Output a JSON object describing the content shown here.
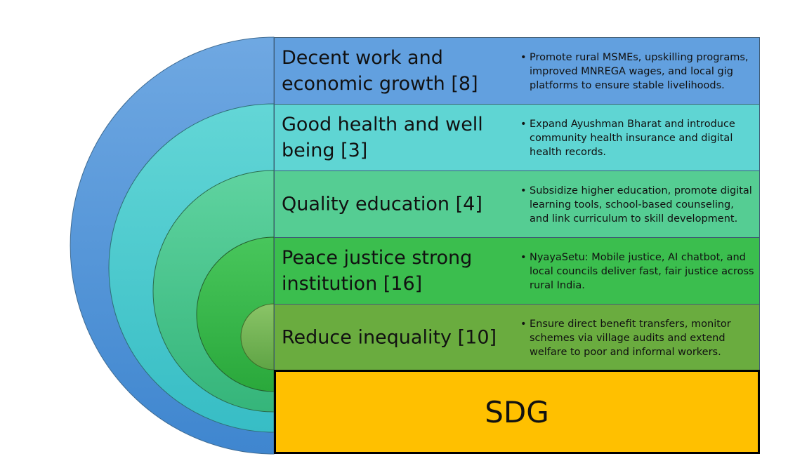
{
  "bands": [
    {
      "title": "Decent work and economic growth [8]",
      "note": "Promote rural MSMEs, upskilling programs, improved MNREGA wages, and local gig platforms to ensure stable livelihoods.",
      "color": "#62a0df"
    },
    {
      "title": "Good health and well being [3]",
      "note": "Expand Ayushman Bharat and  introduce community health insurance and digital health records.",
      "color": "#5fd5d3"
    },
    {
      "title": "Quality education [4]",
      "note": "Subsidize higher education, promote digital learning tools, school-based counseling, and link curriculum to skill development.",
      "color": "#55cd93"
    },
    {
      "title": "Peace justice strong institution [16]",
      "note": "NyayaSetu: Mobile justice, AI chatbot, and local councils deliver fast, fair justice across rural India.",
      "color": "#3bbe4e"
    },
    {
      "title": "Reduce inequality [10]",
      "note": "Ensure direct benefit transfers, monitor schemes via village audits and extend welfare to poor and informal workers.",
      "color": "#6aac3f"
    }
  ],
  "arc_colors": [
    "#4a8fd4",
    "#47c7cc",
    "#45c28a",
    "#35b546",
    "#77b857"
  ],
  "sdg": {
    "label": "SDG",
    "color": "#ffc000"
  }
}
